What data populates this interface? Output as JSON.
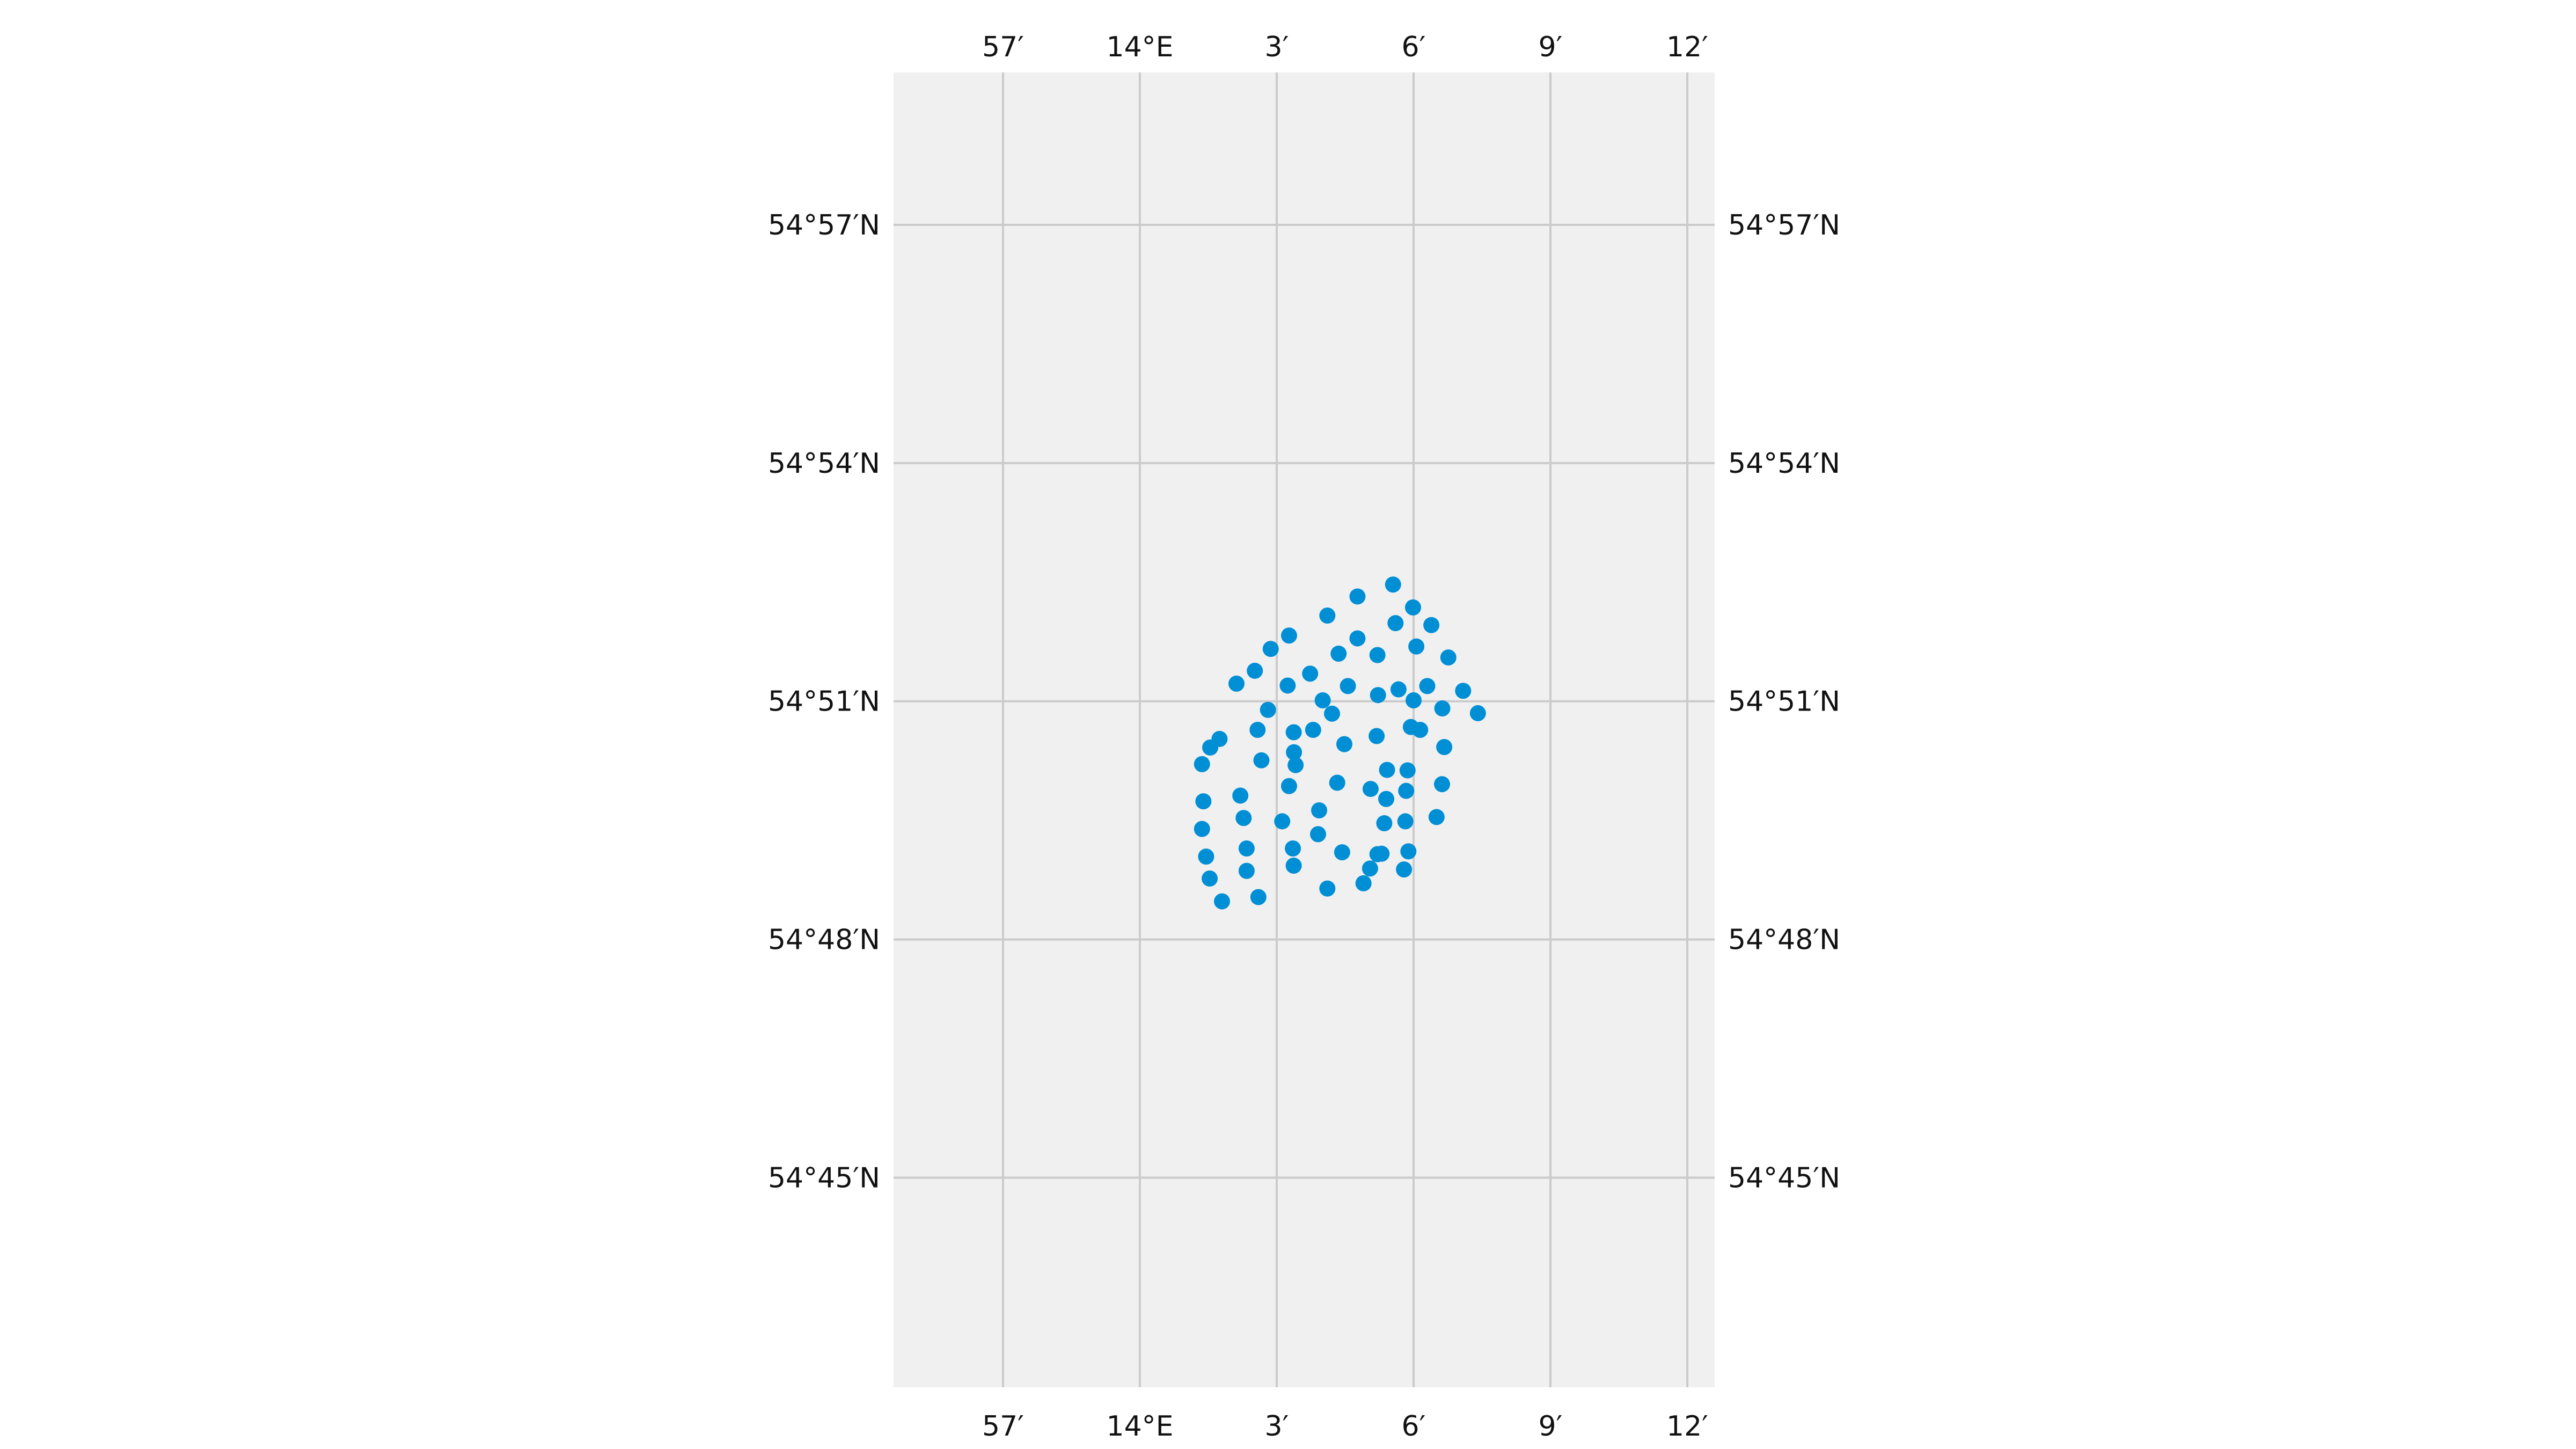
{
  "map": {
    "type": "scatter",
    "projection": "geographic",
    "lon_range": [
      13.91,
      14.21
    ],
    "lat_range": [
      54.706,
      54.982
    ],
    "grid": true,
    "background_color": "#f0f0f0",
    "grid_color": "#cbcbcb",
    "point_color": "#008fd5",
    "lon_ticks": [
      {
        "value": 13.95,
        "label": "57′"
      },
      {
        "value": 14.0,
        "label": "14°E"
      },
      {
        "value": 14.05,
        "label": "3′"
      },
      {
        "value": 14.1,
        "label": "6′"
      },
      {
        "value": 14.15,
        "label": "9′"
      },
      {
        "value": 14.2,
        "label": "12′"
      }
    ],
    "lat_ticks": [
      {
        "value": 54.95,
        "label": "54°57′N"
      },
      {
        "value": 54.9,
        "label": "54°54′N"
      },
      {
        "value": 54.85,
        "label": "54°51′N"
      },
      {
        "value": 54.8,
        "label": "54°48′N"
      },
      {
        "value": 54.75,
        "label": "54°45′N"
      }
    ],
    "points": [
      [
        14.0925,
        54.8745
      ],
      [
        14.0795,
        54.872
      ],
      [
        14.0998,
        54.8697
      ],
      [
        14.0685,
        54.868
      ],
      [
        14.0934,
        54.8664
      ],
      [
        14.1065,
        54.866
      ],
      [
        14.0545,
        54.8638
      ],
      [
        14.0795,
        54.8632
      ],
      [
        14.101,
        54.8615
      ],
      [
        14.0478,
        54.861
      ],
      [
        14.0726,
        54.86
      ],
      [
        14.0868,
        54.8597
      ],
      [
        14.1127,
        54.8592
      ],
      [
        14.042,
        54.8564
      ],
      [
        14.0622,
        54.8558
      ],
      [
        14.054,
        54.8533
      ],
      [
        14.076,
        54.8532
      ],
      [
        14.0945,
        54.8525
      ],
      [
        14.105,
        54.8532
      ],
      [
        14.1181,
        54.8522
      ],
      [
        14.0353,
        54.8537
      ],
      [
        14.087,
        54.8513
      ],
      [
        14.0668,
        54.8502
      ],
      [
        14.1,
        54.8502
      ],
      [
        14.1105,
        54.8485
      ],
      [
        14.0468,
        54.8482
      ],
      [
        14.0702,
        54.8474
      ],
      [
        14.1235,
        54.8475
      ],
      [
        14.0562,
        54.8435
      ],
      [
        14.0865,
        54.8427
      ],
      [
        14.0291,
        54.8421
      ],
      [
        14.043,
        54.844
      ],
      [
        14.0633,
        54.844
      ],
      [
        14.099,
        54.8446
      ],
      [
        14.0257,
        54.8403
      ],
      [
        14.0747,
        54.841
      ],
      [
        14.1024,
        54.844
      ],
      [
        14.0563,
        54.8393
      ],
      [
        14.1112,
        54.8404
      ],
      [
        14.0444,
        54.8376
      ],
      [
        14.0569,
        54.8366
      ],
      [
        14.0227,
        54.8368
      ],
      [
        14.0903,
        54.8356
      ],
      [
        14.0978,
        54.8355
      ],
      [
        14.0545,
        54.8322
      ],
      [
        14.0721,
        54.8329
      ],
      [
        14.0843,
        54.8316
      ],
      [
        14.1104,
        54.8326
      ],
      [
        14.0367,
        54.8302
      ],
      [
        14.0973,
        54.8312
      ],
      [
        14.09,
        54.8295
      ],
      [
        14.0232,
        54.829
      ],
      [
        14.0655,
        54.8271
      ],
      [
        14.1084,
        54.8257
      ],
      [
        14.0379,
        54.8255
      ],
      [
        14.052,
        54.8248
      ],
      [
        14.0893,
        54.8244
      ],
      [
        14.097,
        54.8248
      ],
      [
        14.0227,
        54.8232
      ],
      [
        14.0651,
        54.8221
      ],
      [
        14.039,
        54.8191
      ],
      [
        14.0559,
        54.8191
      ],
      [
        14.0739,
        54.8183
      ],
      [
        14.0868,
        54.8179
      ],
      [
        14.0883,
        54.818
      ],
      [
        14.0981,
        54.8185
      ],
      [
        14.0242,
        54.8174
      ],
      [
        14.0562,
        54.8155
      ],
      [
        14.039,
        54.8144
      ],
      [
        14.0841,
        54.8149
      ],
      [
        14.0965,
        54.8147
      ],
      [
        14.0255,
        54.8128
      ],
      [
        14.0817,
        54.8118
      ],
      [
        14.0685,
        54.8107
      ],
      [
        14.0433,
        54.8089
      ],
      [
        14.03,
        54.808
      ]
    ]
  }
}
